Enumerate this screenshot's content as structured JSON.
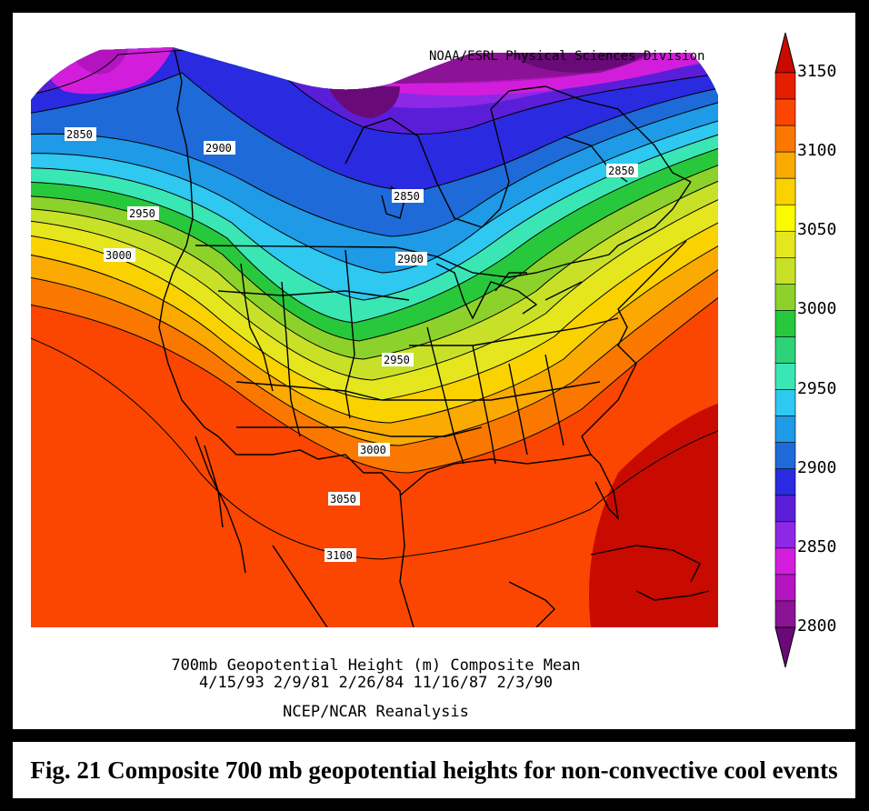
{
  "map": {
    "credit": "NOAA/ESRL Physical Sciences Division",
    "title_line1": "700mb Geopotential Height (m) Composite Mean",
    "title_line2": "4/15/93 2/9/81 2/26/84 11/16/87 2/3/90",
    "title_line3": "NCEP/NCAR Reanalysis",
    "caption": "Fig. 21 Composite 700 mb geopotential heights for non-convective cool events",
    "contour_labels": [
      "2850",
      "2900",
      "2850",
      "2850",
      "2950",
      "3000",
      "2900",
      "2950",
      "3000",
      "3050",
      "3100"
    ]
  },
  "colorbar": {
    "labels": [
      "3150",
      "3100",
      "3050",
      "3000",
      "2950",
      "2900",
      "2850",
      "2800"
    ],
    "colors": [
      "#6a0a78",
      "#8c1296",
      "#b414c0",
      "#d21edc",
      "#8c28e6",
      "#5a1ed8",
      "#2a2ae0",
      "#1e6ad8",
      "#1e9ae6",
      "#2ec8f0",
      "#3ae6b4",
      "#2ed278",
      "#28c83c",
      "#8cd22a",
      "#c8e128",
      "#e6e61e",
      "#fafa00",
      "#fad200",
      "#faaa00",
      "#fa7800",
      "#fa4600",
      "#e61e00",
      "#c80a00"
    ]
  }
}
